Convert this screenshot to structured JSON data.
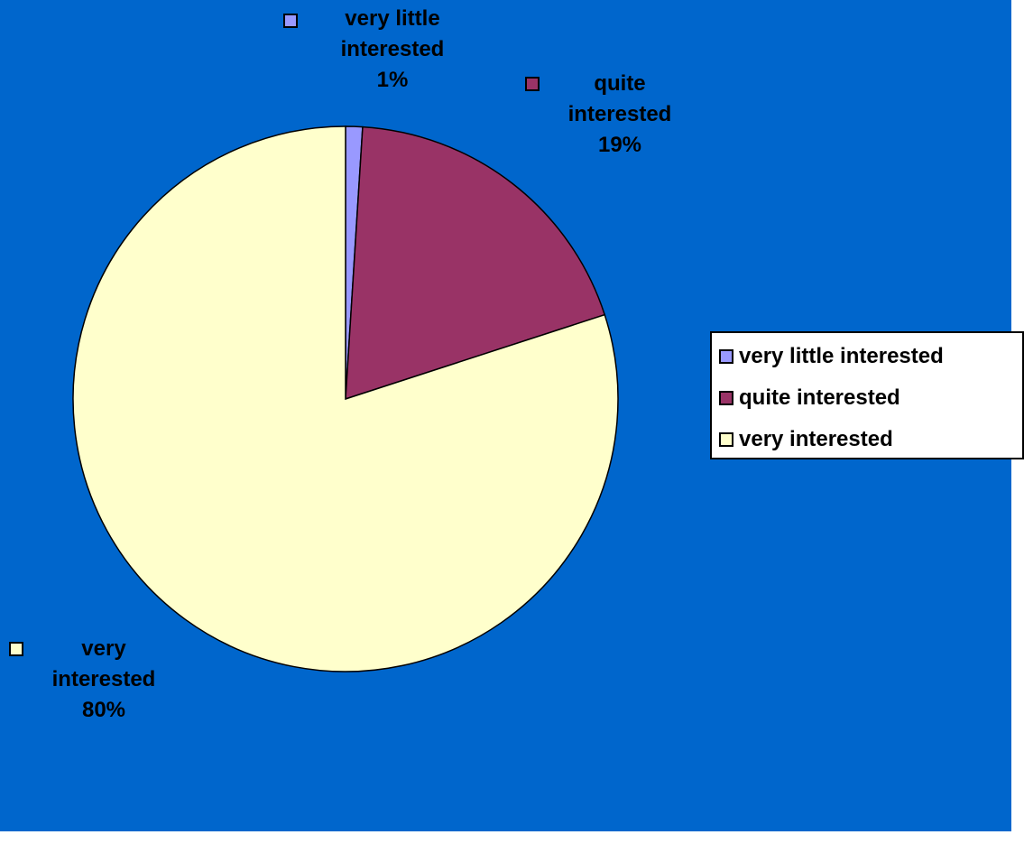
{
  "chart_data": {
    "type": "pie",
    "categories": [
      "very little interested",
      "quite interested",
      "very interested"
    ],
    "values": [
      1,
      19,
      80
    ],
    "unit": "%",
    "start_angle_deg": 0,
    "direction": "clockwise",
    "title": "",
    "legend": {
      "placement": "right"
    },
    "labels": [
      {
        "lines": [
          "very little",
          "interested",
          "1%"
        ]
      },
      {
        "lines": [
          "quite",
          "interested",
          "19%"
        ]
      },
      {
        "lines": [
          "very",
          "interested",
          "80%"
        ]
      }
    ]
  },
  "colors": {
    "background": "#0066cc",
    "slices": [
      "#9999ff",
      "#993366",
      "#ffffcc"
    ],
    "outline": "#000000"
  }
}
